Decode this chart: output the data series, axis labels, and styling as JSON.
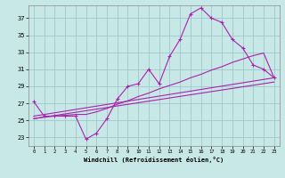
{
  "background_color": "#c8e8e8",
  "grid_color": "#a0c8c8",
  "line_color": "#aa22aa",
  "xlim": [
    -0.5,
    23.5
  ],
  "ylim": [
    22.0,
    38.5
  ],
  "yticks": [
    23,
    25,
    27,
    29,
    31,
    33,
    35,
    37
  ],
  "xticks": [
    0,
    1,
    2,
    3,
    4,
    5,
    6,
    7,
    8,
    9,
    10,
    11,
    12,
    13,
    14,
    15,
    16,
    17,
    18,
    19,
    20,
    21,
    22,
    23
  ],
  "xlabel": "Windchill (Refroidissement éolien,°C)",
  "curve1_x": [
    0,
    1,
    2,
    3,
    4,
    5,
    6,
    7,
    8,
    9,
    10,
    11,
    12,
    13,
    14,
    15,
    16,
    17,
    18,
    19,
    20,
    21,
    22,
    23
  ],
  "curve1_y": [
    27.2,
    25.5,
    25.5,
    25.5,
    25.5,
    22.8,
    23.5,
    25.2,
    27.5,
    29.0,
    29.3,
    31.0,
    29.3,
    32.5,
    34.5,
    37.5,
    38.2,
    37.0,
    36.5,
    34.5,
    33.5,
    31.5,
    31.0,
    30.0
  ],
  "curve2_x": [
    0,
    23
  ],
  "curve2_y": [
    25.5,
    30.0
  ],
  "curve3_x": [
    0,
    23
  ],
  "curve3_y": [
    25.2,
    29.5
  ],
  "curve4_x": [
    0,
    1,
    2,
    3,
    4,
    5,
    6,
    7,
    8,
    9,
    10,
    11,
    12,
    13,
    14,
    15,
    16,
    17,
    18,
    19,
    20,
    21,
    22,
    23
  ],
  "curve4_y": [
    25.2,
    25.4,
    25.5,
    25.6,
    25.7,
    25.7,
    26.0,
    26.4,
    26.9,
    27.3,
    27.8,
    28.2,
    28.7,
    29.1,
    29.5,
    30.0,
    30.4,
    30.9,
    31.3,
    31.8,
    32.2,
    32.6,
    32.9,
    30.0
  ]
}
